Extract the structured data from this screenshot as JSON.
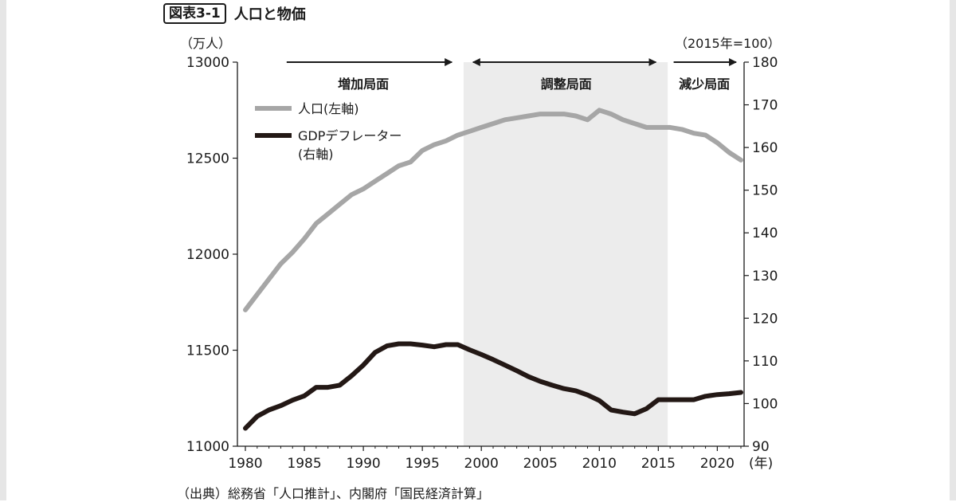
{
  "header": {
    "figure_number": "図表3-1",
    "title": "人口と物価"
  },
  "source_note": "（出典）総務省「人口推計」、内閣府「国民経済計算」",
  "colors": {
    "population": "#a6a6a6",
    "deflator": "#231815",
    "shade": "#ececec",
    "axis": "#1a1a1a"
  },
  "chart_data": {
    "type": "line",
    "y_left": {
      "label": "（万人）",
      "range": [
        11000,
        13000
      ],
      "ticks": [
        11000,
        11500,
        12000,
        12500,
        13000
      ]
    },
    "y_right": {
      "label": "（2015年=100）",
      "range": [
        90,
        180
      ],
      "ticks": [
        90,
        100,
        110,
        120,
        130,
        140,
        150,
        160,
        170,
        180
      ]
    },
    "x": {
      "unit": "(年)",
      "range": [
        1980,
        2022
      ],
      "ticks": [
        1980,
        1985,
        1990,
        1995,
        2000,
        2005,
        2010,
        2015,
        2020
      ]
    },
    "phases": [
      {
        "label": "増加局面",
        "from": 1980,
        "to": 1998.5,
        "shaded": false
      },
      {
        "label": "調整局面",
        "from": 1998.5,
        "to": 2015.8,
        "shaded": true
      },
      {
        "label": "減少局面",
        "from": 2015.8,
        "to": 2022,
        "shaded": false
      }
    ],
    "series": [
      {
        "name": "人口(左軸)",
        "axis": "left",
        "x": [
          1980,
          1981,
          1982,
          1983,
          1984,
          1985,
          1986,
          1987,
          1988,
          1989,
          1990,
          1991,
          1992,
          1993,
          1994,
          1995,
          1996,
          1997,
          1998,
          1999,
          2000,
          2001,
          2002,
          2003,
          2004,
          2005,
          2006,
          2007,
          2008,
          2009,
          2010,
          2011,
          2012,
          2013,
          2014,
          2015,
          2016,
          2017,
          2018,
          2019,
          2020,
          2021,
          2022
        ],
        "values": [
          11710,
          11790,
          11870,
          11950,
          12010,
          12080,
          12160,
          12210,
          12260,
          12310,
          12340,
          12380,
          12420,
          12460,
          12480,
          12540,
          12570,
          12590,
          12620,
          12640,
          12660,
          12680,
          12700,
          12710,
          12720,
          12730,
          12730,
          12730,
          12720,
          12700,
          12750,
          12730,
          12700,
          12680,
          12660,
          12660,
          12660,
          12650,
          12630,
          12620,
          12580,
          12530,
          12490
        ]
      },
      {
        "name": "GDPデフレーター",
        "name_line2": "(右軸)",
        "axis": "right",
        "x": [
          1980,
          1981,
          1982,
          1983,
          1984,
          1985,
          1986,
          1987,
          1988,
          1989,
          1990,
          1991,
          1992,
          1993,
          1994,
          1995,
          1996,
          1997,
          1998,
          1999,
          2000,
          2001,
          2002,
          2003,
          2004,
          2005,
          2006,
          2007,
          2008,
          2009,
          2010,
          2011,
          2012,
          2013,
          2014,
          2015,
          2016,
          2017,
          2018,
          2019,
          2020,
          2021,
          2022
        ],
        "values": [
          94.2,
          97.0,
          98.5,
          99.5,
          100.8,
          101.8,
          103.8,
          103.8,
          104.3,
          106.5,
          109.0,
          112.0,
          113.5,
          114.0,
          114.0,
          113.7,
          113.3,
          113.8,
          113.8,
          112.6,
          111.5,
          110.3,
          109.0,
          107.7,
          106.3,
          105.2,
          104.3,
          103.5,
          103.0,
          102.0,
          100.7,
          98.5,
          98.0,
          97.6,
          98.8,
          100.9,
          100.9,
          100.9,
          100.9,
          101.7,
          102.1,
          102.3,
          102.6
        ]
      }
    ],
    "grid": false,
    "legend_position": "top-left"
  }
}
